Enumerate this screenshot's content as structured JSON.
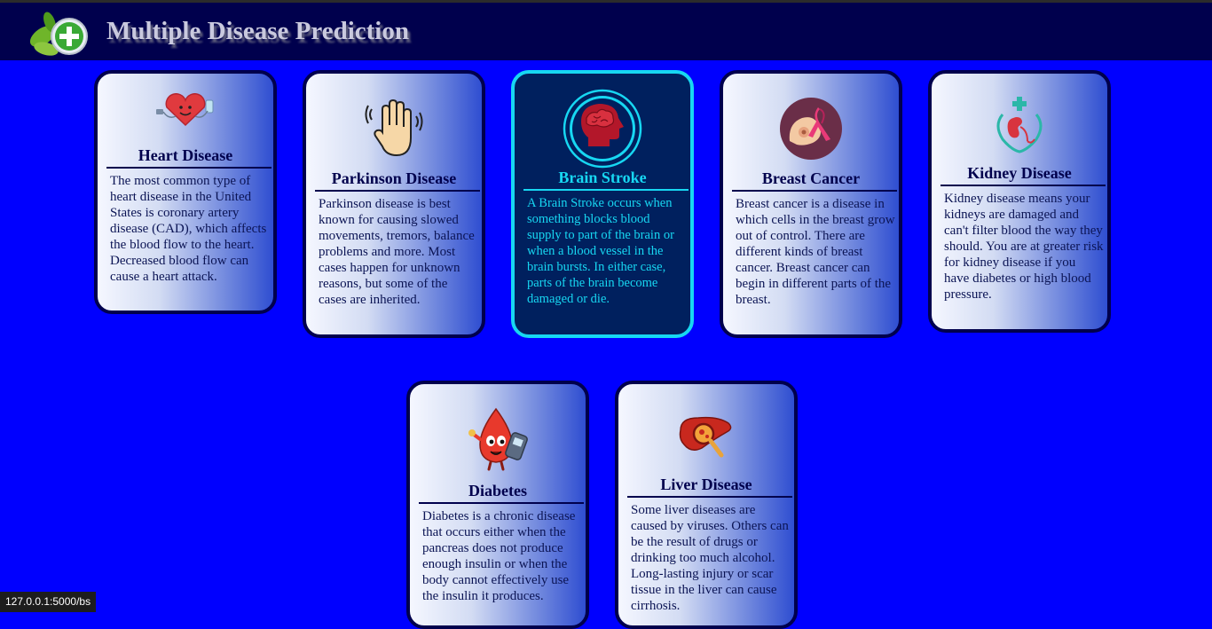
{
  "header": {
    "title": "Multiple Disease Prediction",
    "logo_icon": "leaf-plus-logo-icon"
  },
  "colors": {
    "page_bg": "#0000ff",
    "header_bg": "#00004d",
    "active_border": "#17d7f2",
    "active_bg": "#00205e"
  },
  "cards": [
    {
      "title": "Heart Disease",
      "icon": "heart-icon",
      "active": false,
      "description": "The most common type of heart disease in the United States is coronary artery disease (CAD), which affects the blood flow to the heart. Decreased blood flow can cause a heart attack."
    },
    {
      "title": "Parkinson Disease",
      "icon": "shaking-hand-icon",
      "active": false,
      "description": "Parkinson disease is best known for causing slowed movements, tremors, balance problems and more. Most cases happen for unknown reasons, but some of the cases are inherited."
    },
    {
      "title": "Brain Stroke",
      "icon": "brain-head-icon",
      "active": true,
      "description": "A Brain Stroke occurs when something blocks blood supply to part of the brain or when a blood vessel in the brain bursts. In either case, parts of the brain become damaged or die."
    },
    {
      "title": "Breast Cancer",
      "icon": "pink-ribbon-icon",
      "active": false,
      "description": "Breast cancer is a disease in which cells in the breast grow out of control. There are different kinds of breast cancer. Breast cancer can begin in different parts of the breast."
    },
    {
      "title": "Kidney Disease",
      "icon": "kidney-icon",
      "active": false,
      "description": "Kidney disease means your kidneys are damaged and can't filter blood the way they should. You are at greater risk for kidney disease if you have diabetes or high blood pressure."
    },
    {
      "title": "Diabetes",
      "icon": "blood-drop-glucometer-icon",
      "active": false,
      "description": "Diabetes is a chronic disease that occurs either when the pancreas does not produce enough insulin or when the body cannot effectively use the insulin it produces."
    },
    {
      "title": "Liver Disease",
      "icon": "liver-magnifier-icon",
      "active": false,
      "description": "Some liver diseases are caused by viruses. Others can be the result of drugs or drinking too much alcohol. Long-lasting injury or scar tissue in the liver can cause cirrhosis."
    }
  ],
  "status_bar": {
    "url": "127.0.0.1:5000/bs"
  }
}
